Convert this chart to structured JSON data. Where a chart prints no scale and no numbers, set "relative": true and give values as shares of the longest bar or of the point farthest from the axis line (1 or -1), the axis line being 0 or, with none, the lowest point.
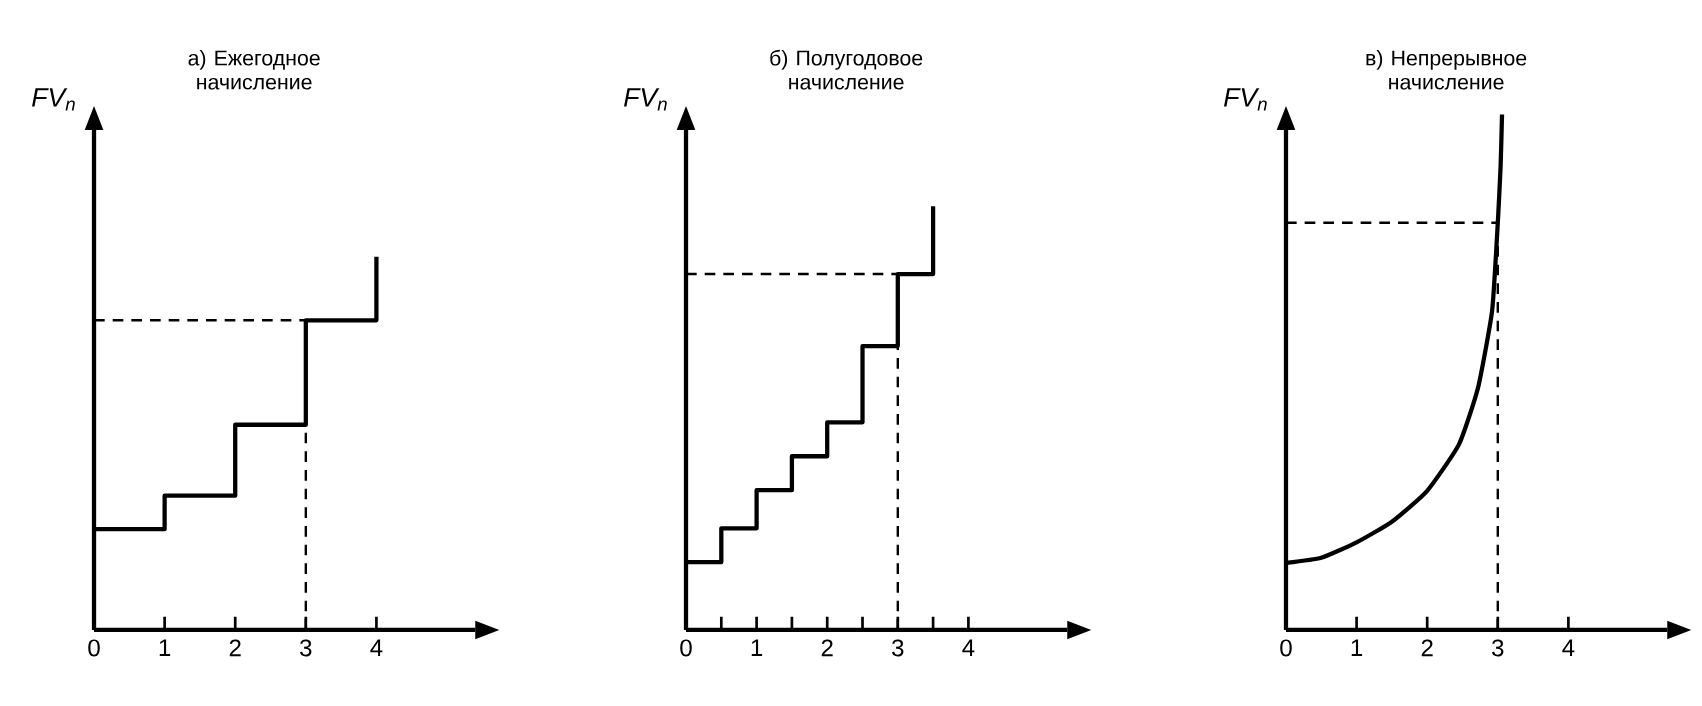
{
  "chart_data": [
    {
      "type": "step",
      "title": "а) Ежегодное начисление",
      "ylabel": "FV$_{n}$",
      "relative": true,
      "xlim": [
        0,
        5.4
      ],
      "xticks": [
        0,
        1,
        2,
        3,
        4
      ],
      "series": [
        {
          "color": "#000000",
          "x": [
            0,
            1,
            2,
            3,
            4
          ],
          "values": [
            0.27,
            0.36,
            0.55,
            0.83,
            1.0
          ]
        }
      ],
      "ref_lines": [
        {
          "axis": "y",
          "value": 0.83,
          "line_style": "dashed"
        },
        {
          "axis": "x",
          "value": 3,
          "line_style": "dashed"
        }
      ]
    },
    {
      "type": "step",
      "title": "б) Полугодовое начисление",
      "ylabel": "FV$_{n}$",
      "relative": true,
      "xlim": [
        0,
        5.4
      ],
      "xticks": [
        0,
        {
          "value": 0.5,
          "label": null
        },
        1,
        {
          "value": 1.5,
          "label": null
        },
        2,
        {
          "value": 2.5,
          "label": null
        },
        3,
        {
          "value": 3.5,
          "label": null
        },
        4
      ],
      "series": [
        {
          "color": "#000000",
          "x": [
            0,
            0.5,
            1,
            1.5,
            2,
            2.5,
            3,
            3.5
          ],
          "values": [
            0.16,
            0.24,
            0.33,
            0.41,
            0.49,
            0.67,
            0.84,
            1.0
          ]
        }
      ],
      "ref_lines": [
        {
          "axis": "y",
          "value": 0.84,
          "line_style": "dashed"
        },
        {
          "axis": "x",
          "value": 3,
          "line_style": "dashed"
        }
      ]
    },
    {
      "type": "line",
      "title": "в) Непрерывное начисление",
      "ylabel": "FV$_{n}$",
      "relative": true,
      "xlim": [
        0,
        5.4
      ],
      "xticks": [
        0,
        1,
        2,
        3,
        4
      ],
      "series": [
        {
          "color": "#000000",
          "x": [
            0,
            0.5,
            1,
            1.5,
            2,
            2.45,
            2.72,
            2.92,
            3.0,
            3.04,
            3.06
          ],
          "values": [
            0.13,
            0.14,
            0.17,
            0.21,
            0.27,
            0.36,
            0.47,
            0.62,
            0.79,
            0.9,
            1.0
          ]
        }
      ],
      "ref_lines": [
        {
          "axis": "y",
          "value": 0.79,
          "line_style": "dashed"
        },
        {
          "axis": "x",
          "value": 3,
          "line_style": "dashed"
        }
      ]
    }
  ]
}
